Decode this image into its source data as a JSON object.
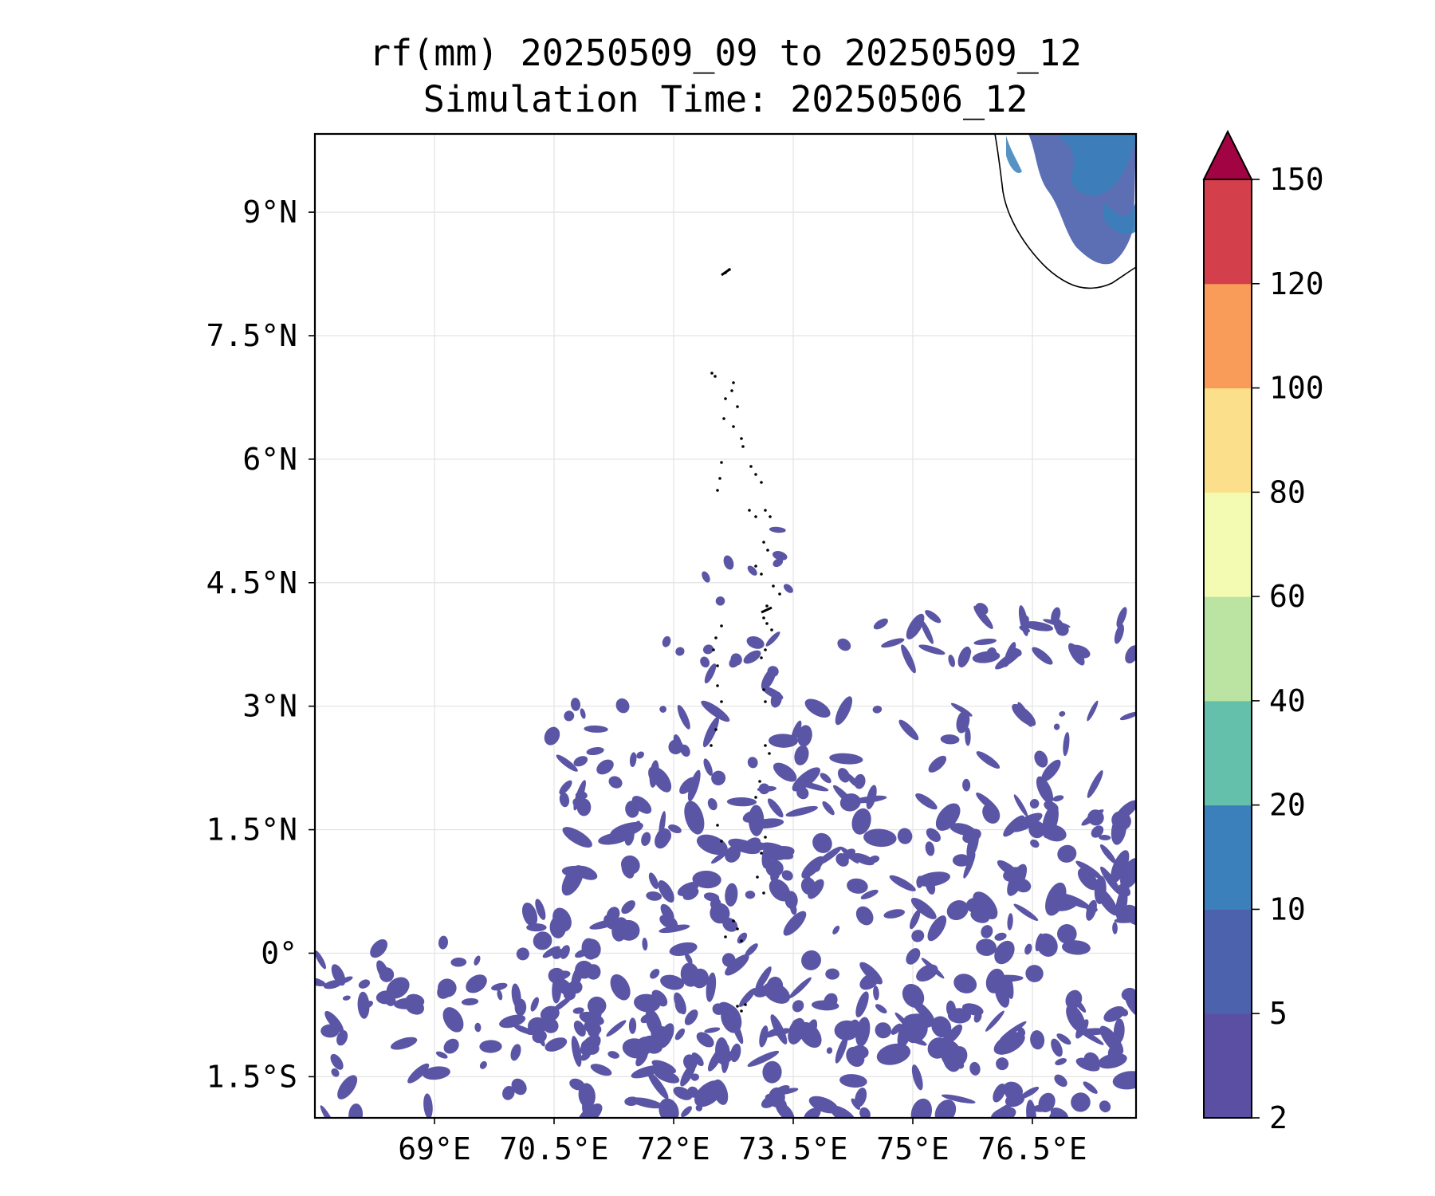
{
  "title": {
    "line1": "rf(mm) 20250509_09 to 20250509_12",
    "line2": "Simulation Time: 20250506_12"
  },
  "map": {
    "lon_range": [
      67.5,
      77.8
    ],
    "lat_range": [
      -2.0,
      9.95
    ],
    "lon_ticks": [
      {
        "value": 69.0,
        "label": "69°E"
      },
      {
        "value": 70.5,
        "label": "70.5°E"
      },
      {
        "value": 72.0,
        "label": "72°E"
      },
      {
        "value": 73.5,
        "label": "73.5°E"
      },
      {
        "value": 75.0,
        "label": "75°E"
      },
      {
        "value": 76.5,
        "label": "76.5°E"
      }
    ],
    "lat_ticks": [
      {
        "value": 9.0,
        "label": "9°N"
      },
      {
        "value": 7.5,
        "label": "7.5°N"
      },
      {
        "value": 6.0,
        "label": "6°N"
      },
      {
        "value": 4.5,
        "label": "4.5°N"
      },
      {
        "value": 3.0,
        "label": "3°N"
      },
      {
        "value": 1.5,
        "label": "1.5°N"
      },
      {
        "value": 0.0,
        "label": "0°"
      },
      {
        "value": -1.5,
        "label": "1.5°S"
      }
    ],
    "gridlines": true
  },
  "colorbar": {
    "extend": "max",
    "levels": [
      {
        "value": 2,
        "label": "2"
      },
      {
        "value": 5,
        "label": "5"
      },
      {
        "value": 10,
        "label": "10"
      },
      {
        "value": 20,
        "label": "20"
      },
      {
        "value": 40,
        "label": "40"
      },
      {
        "value": 60,
        "label": "60"
      },
      {
        "value": 80,
        "label": "80"
      },
      {
        "value": 100,
        "label": "100"
      },
      {
        "value": 120,
        "label": "120"
      },
      {
        "value": 150,
        "label": "150"
      }
    ],
    "colors": [
      "#5b4fa3",
      "#4d62ad",
      "#3b80ba",
      "#64bfab",
      "#bbe3a1",
      "#f3fab2",
      "#fcdf8a",
      "#f99c59",
      "#d43f4c"
    ],
    "extend_color": "#a20342"
  },
  "rain_color": "#5b55a5",
  "land_rain_color": "#3a6fb5"
}
